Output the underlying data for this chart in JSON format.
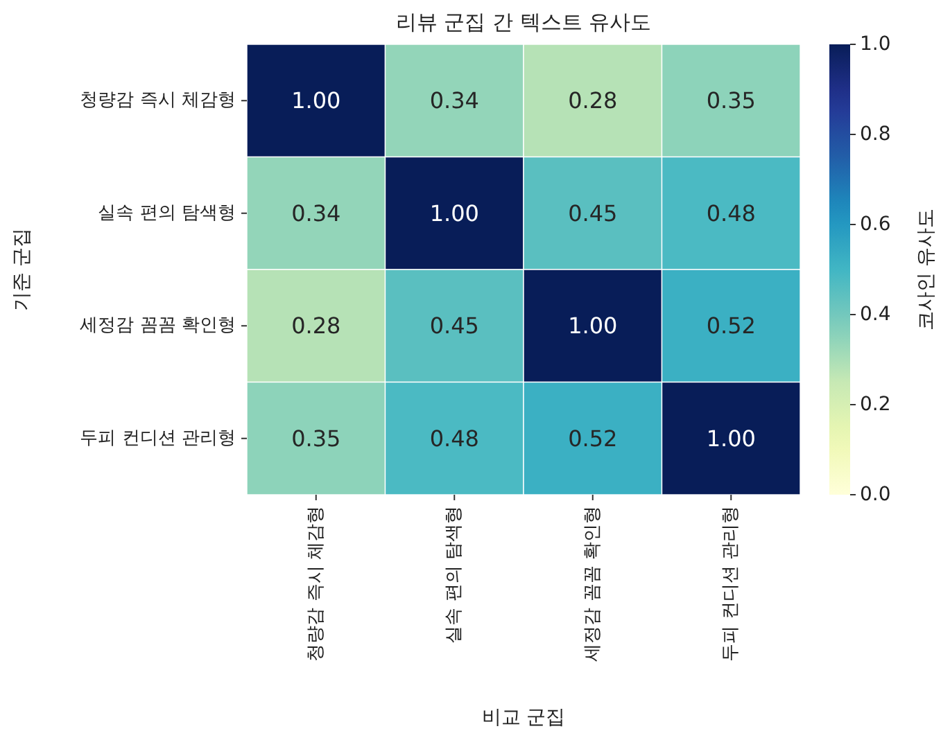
{
  "chart_data": {
    "type": "heatmap",
    "title": "리뷰 군집 간 텍스트 유사도",
    "xlabel": "비교 군집",
    "ylabel": "기준 군집",
    "clabel": "코사인 유사도",
    "categories": [
      "청량감 즉시 체감형",
      "실속 편의 탐색형",
      "세정감 꼼꼼 확인형",
      "두피 컨디션 관리형"
    ],
    "y_categories": [
      "청량감 즉시 체감형",
      "실속 편의 탐색형",
      "세정감 꼼꼼 확인형",
      "두피 컨디션 관리형"
    ],
    "cells": [
      [
        1.0,
        0.34,
        0.28,
        0.35
      ],
      [
        0.34,
        1.0,
        0.45,
        0.48
      ],
      [
        0.28,
        0.45,
        1.0,
        0.52
      ],
      [
        0.35,
        0.48,
        0.52,
        1.0
      ]
    ],
    "cell_labels": [
      [
        "1.00",
        "0.34",
        "0.28",
        "0.35"
      ],
      [
        "0.34",
        "1.00",
        "0.45",
        "0.48"
      ],
      [
        "0.28",
        "0.45",
        "1.00",
        "0.52"
      ],
      [
        "0.35",
        "0.48",
        "0.52",
        "1.00"
      ]
    ],
    "clim": [
      0,
      1
    ],
    "cticks": [
      {
        "value": 0,
        "label": "0.0"
      },
      {
        "value": 0.2,
        "label": "0.2"
      },
      {
        "value": 0.4,
        "label": "0.4"
      },
      {
        "value": 0.6,
        "label": "0.6"
      },
      {
        "value": 0.8,
        "label": "0.8"
      },
      {
        "value": 1,
        "label": "1.0"
      }
    ]
  }
}
